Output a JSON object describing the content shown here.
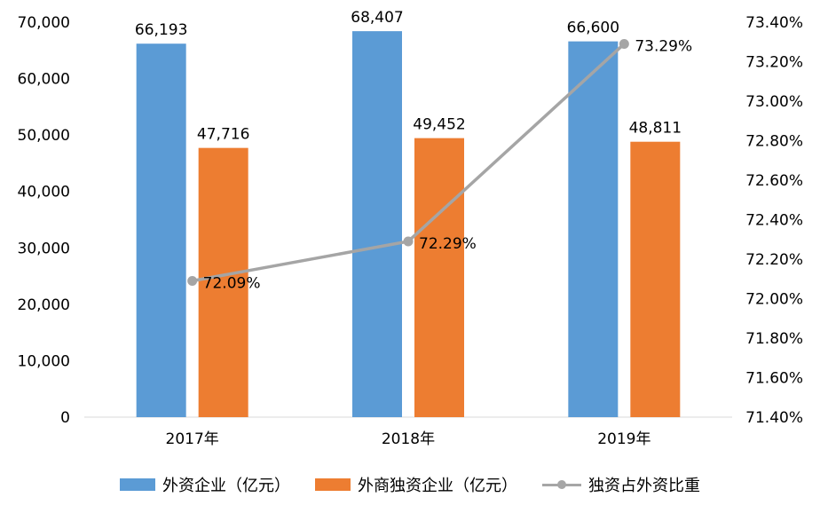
{
  "chart_data": {
    "type": "bar",
    "categories": [
      "2017年",
      "2018年",
      "2019年"
    ],
    "series": [
      {
        "name": "外资企业（亿元）",
        "type": "bar",
        "axis": "left",
        "values": [
          66193,
          68407,
          66600
        ],
        "labels": [
          "66,193",
          "68,407",
          "66,600"
        ],
        "color": "#5b9bd5"
      },
      {
        "name": "外商独资企业（亿元）",
        "type": "bar",
        "axis": "left",
        "values": [
          47716,
          49452,
          48811
        ],
        "labels": [
          "47,716",
          "49,452",
          "48,811"
        ],
        "color": "#ed7d31"
      },
      {
        "name": "独资占外资比重",
        "type": "line",
        "axis": "right",
        "values": [
          72.09,
          72.29,
          73.29
        ],
        "labels": [
          "72.09%",
          "72.29%",
          "73.29%"
        ],
        "color": "#a5a5a5"
      }
    ],
    "ylim": [
      0,
      70000
    ],
    "y2lim": [
      71.4,
      73.4
    ],
    "yticks": [
      "0",
      "10,000",
      "20,000",
      "30,000",
      "40,000",
      "50,000",
      "60,000",
      "70,000"
    ],
    "y2ticks": [
      "71.40%",
      "71.60%",
      "71.80%",
      "72.00%",
      "72.20%",
      "72.40%",
      "72.60%",
      "72.80%",
      "73.00%",
      "73.20%",
      "73.40%"
    ],
    "legend_position": "bottom",
    "grid": false
  }
}
